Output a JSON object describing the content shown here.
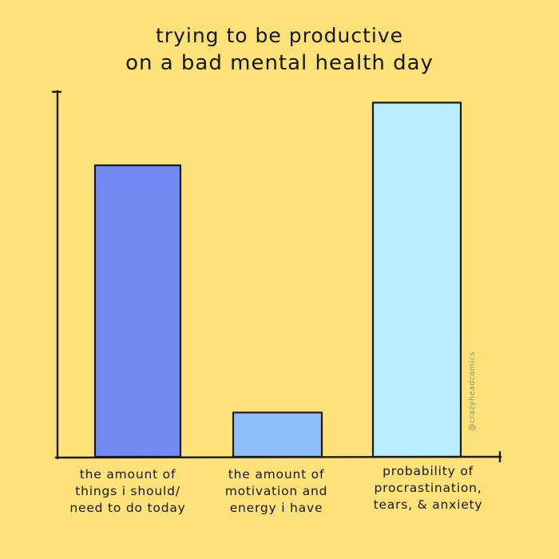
{
  "chart_data": {
    "type": "bar",
    "title_lines": [
      "trying to be productive",
      "on a bad mental health day"
    ],
    "xlabel": "",
    "ylabel": "",
    "ylim": [
      0,
      100
    ],
    "grid": false,
    "categories": [
      "the amount of things i should/ need to do today",
      "the amount of motivation and energy i have",
      "probability of procrastination, tears, & anxiety"
    ],
    "category_lines": [
      [
        "the amount of",
        "things i should/",
        "need to do today"
      ],
      [
        "the amount of",
        "motivation and",
        "energy i have"
      ],
      [
        "probability of",
        "procrastination,",
        "tears, & anxiety"
      ]
    ],
    "values": [
      79,
      12,
      96
    ],
    "colors": [
      "#7389f3",
      "#8fc0fb",
      "#b9ecfd"
    ]
  },
  "watermark": "@crazyheadcomics"
}
